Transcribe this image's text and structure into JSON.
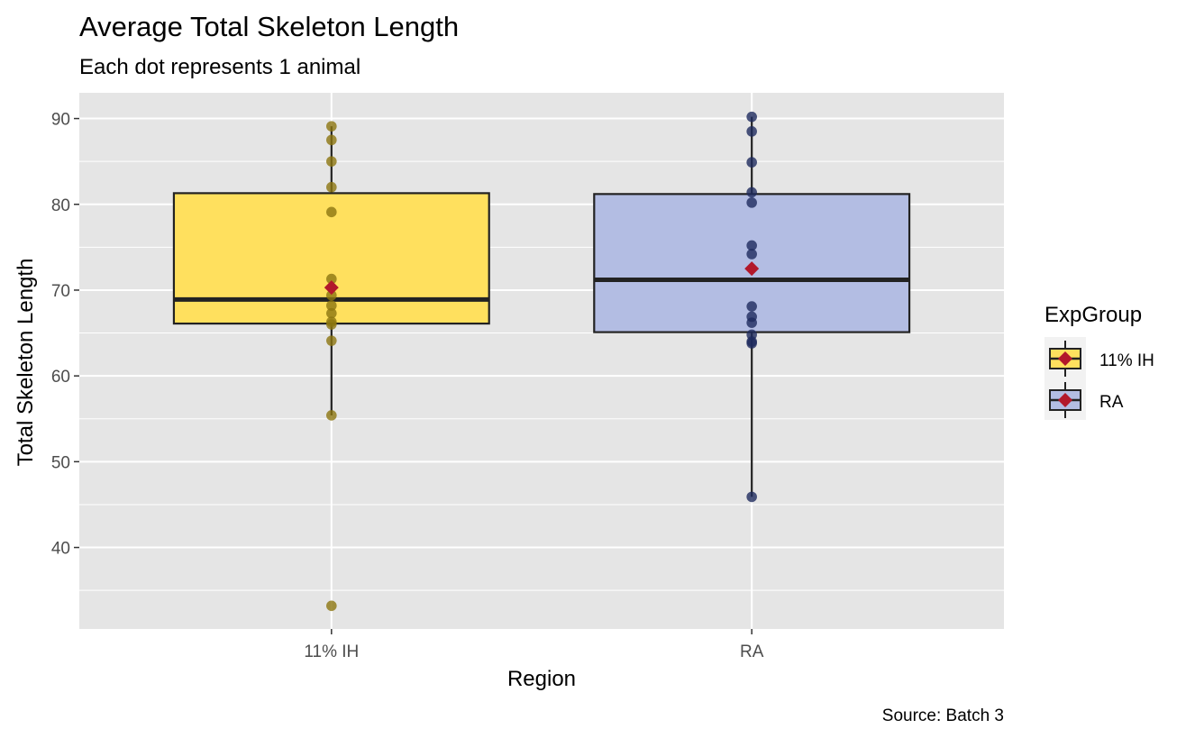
{
  "chart_data": {
    "type": "boxplot",
    "title": "Average Total Skeleton Length",
    "subtitle": "Each dot represents 1 animal",
    "xlabel": "Region",
    "ylabel": "Total Skeleton Length",
    "caption": "Source: Batch 3",
    "categories": [
      "11% IH",
      "RA"
    ],
    "ylim": [
      30.5,
      93
    ],
    "yticks": [
      40,
      50,
      60,
      70,
      80,
      90
    ],
    "grid": true,
    "legend": {
      "title": "ExpGroup",
      "position": "right",
      "entries": [
        "11% IH",
        "RA"
      ]
    },
    "groups": [
      {
        "name": "11% IH",
        "box": {
          "min": 55.4,
          "q1": 66.1,
          "median": 68.9,
          "q3": 81.3,
          "max": 89.1
        },
        "mean": 70.3,
        "points": [
          89.1,
          87.5,
          85.0,
          82.0,
          79.1,
          71.3,
          69.4,
          68.2,
          67.3,
          66.3,
          66.0,
          64.1,
          55.4,
          33.2
        ],
        "fill": "#ffe05e",
        "point_color": "#8c7510"
      },
      {
        "name": "RA",
        "box": {
          "min": 45.9,
          "q1": 65.1,
          "median": 71.2,
          "q3": 81.2,
          "max": 90.2
        },
        "mean": 72.5,
        "points": [
          90.2,
          88.5,
          84.9,
          81.4,
          80.2,
          75.2,
          74.2,
          68.1,
          66.9,
          66.2,
          64.8,
          64.0,
          63.8,
          45.9
        ],
        "fill": "#b3bde3",
        "point_color": "#1e2a5e"
      }
    ],
    "colors": {
      "panel": "#e5e5e5",
      "grid": "#ffffff",
      "box_outline": "#222222",
      "mean_marker": "#b2182b"
    }
  }
}
